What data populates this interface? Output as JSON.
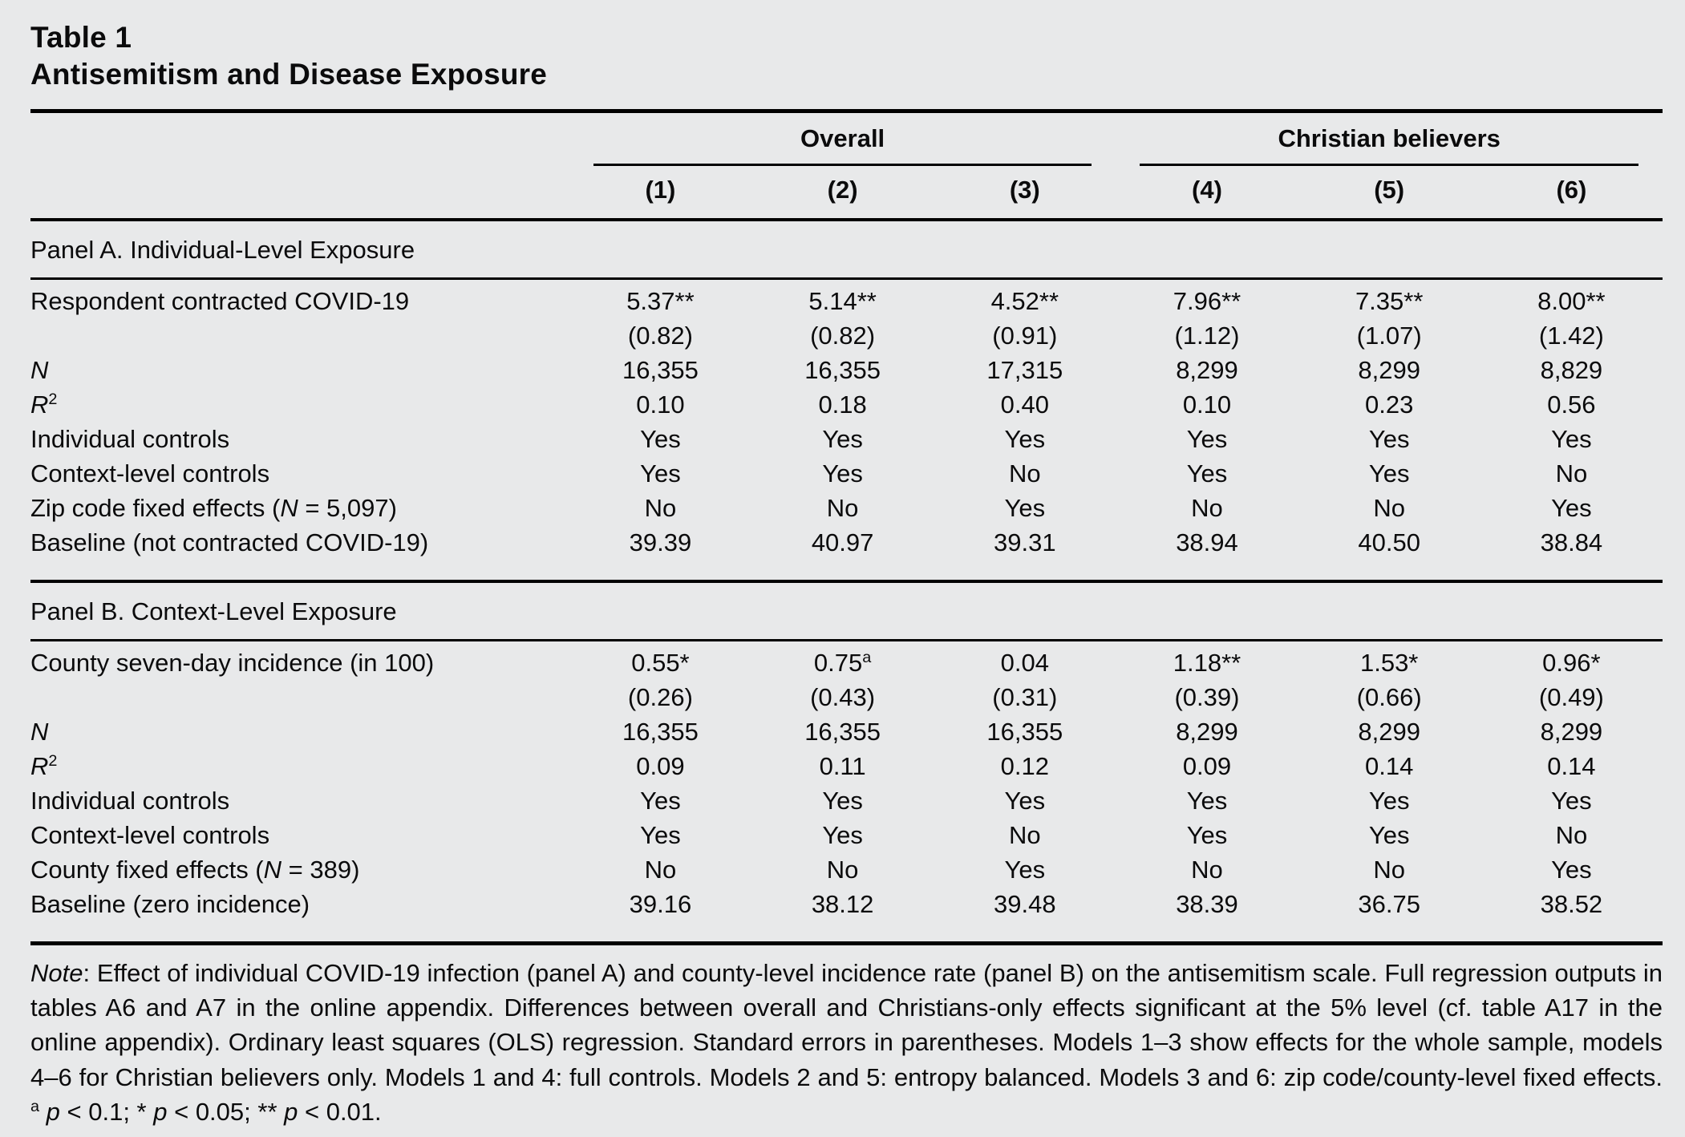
{
  "header": {
    "table_number": "Table 1",
    "table_title": "Antisemitism and Disease Exposure"
  },
  "table": {
    "group_headers": [
      {
        "label": "Overall",
        "span": 3
      },
      {
        "label": "Christian believers",
        "span": 3
      }
    ],
    "column_headers": [
      "(1)",
      "(2)",
      "(3)",
      "(4)",
      "(5)",
      "(6)"
    ],
    "panels": [
      {
        "title": "Panel A. Individual-Level Exposure",
        "rows": [
          {
            "label": [
              {
                "text": "Respondent contracted COVID-19"
              }
            ],
            "values": [
              "5.37**",
              "5.14**",
              "4.52**",
              "7.96**",
              "7.35**",
              "8.00**"
            ]
          },
          {
            "label": [],
            "values": [
              "(0.82)",
              "(0.82)",
              "(0.91)",
              "(1.12)",
              "(1.07)",
              "(1.42)"
            ]
          },
          {
            "label": [
              {
                "text": "N",
                "italic": true
              }
            ],
            "values": [
              "16,355",
              "16,355",
              "17,315",
              "8,299",
              "8,299",
              "8,829"
            ]
          },
          {
            "label": [
              {
                "text": "R",
                "italic": true
              },
              {
                "text": "2",
                "sup": true
              }
            ],
            "values": [
              "0.10",
              "0.18",
              "0.40",
              "0.10",
              "0.23",
              "0.56"
            ]
          },
          {
            "label": [
              {
                "text": "Individual controls"
              }
            ],
            "values": [
              "Yes",
              "Yes",
              "Yes",
              "Yes",
              "Yes",
              "Yes"
            ]
          },
          {
            "label": [
              {
                "text": "Context-level controls"
              }
            ],
            "values": [
              "Yes",
              "Yes",
              "No",
              "Yes",
              "Yes",
              "No"
            ]
          },
          {
            "label": [
              {
                "text": "Zip code fixed effects ("
              },
              {
                "text": "N",
                "italic": true
              },
              {
                "text": " = 5,097)"
              }
            ],
            "values": [
              "No",
              "No",
              "Yes",
              "No",
              "No",
              "Yes"
            ]
          },
          {
            "label": [
              {
                "text": "Baseline (not contracted COVID-19)"
              }
            ],
            "values": [
              "39.39",
              "40.97",
              "39.31",
              "38.94",
              "40.50",
              "38.84"
            ]
          }
        ]
      },
      {
        "title": "Panel B. Context-Level Exposure",
        "rows": [
          {
            "label": [
              {
                "text": "County seven-day incidence (in 100)"
              }
            ],
            "values": [
              "0.55*",
              "0.75^a",
              "0.04",
              "1.18**",
              "1.53*",
              "0.96*"
            ]
          },
          {
            "label": [],
            "values": [
              "(0.26)",
              "(0.43)",
              "(0.31)",
              "(0.39)",
              "(0.66)",
              "(0.49)"
            ]
          },
          {
            "label": [
              {
                "text": "N",
                "italic": true
              }
            ],
            "values": [
              "16,355",
              "16,355",
              "16,355",
              "8,299",
              "8,299",
              "8,299"
            ]
          },
          {
            "label": [
              {
                "text": "R",
                "italic": true
              },
              {
                "text": "2",
                "sup": true
              }
            ],
            "values": [
              "0.09",
              "0.11",
              "0.12",
              "0.09",
              "0.14",
              "0.14"
            ]
          },
          {
            "label": [
              {
                "text": "Individual controls"
              }
            ],
            "values": [
              "Yes",
              "Yes",
              "Yes",
              "Yes",
              "Yes",
              "Yes"
            ]
          },
          {
            "label": [
              {
                "text": "Context-level controls"
              }
            ],
            "values": [
              "Yes",
              "Yes",
              "No",
              "Yes",
              "Yes",
              "No"
            ]
          },
          {
            "label": [
              {
                "text": "County fixed effects ("
              },
              {
                "text": "N",
                "italic": true
              },
              {
                "text": " = 389)"
              }
            ],
            "values": [
              "No",
              "No",
              "Yes",
              "No",
              "No",
              "Yes"
            ]
          },
          {
            "label": [
              {
                "text": "Baseline (zero incidence)"
              }
            ],
            "values": [
              "39.16",
              "38.12",
              "39.48",
              "38.39",
              "36.75",
              "38.52"
            ]
          }
        ]
      }
    ]
  },
  "note": {
    "parts": [
      {
        "text": "Note",
        "italic": true
      },
      {
        "text": ": Effect of individual COVID-19 infection (panel A) and county-level incidence rate (panel B) on the antisemitism scale. Full regression outputs in tables A6 and A7 in the online appendix. Differences between overall and Christians-only effects significant at the 5% level (cf. table A17 in the online appendix). Ordinary least squares (OLS) regression. Standard errors in parentheses. Models 1–3 show effects for the whole sample, models 4–6 for Christian believers only. Models 1 and 4: full controls. Models 2 and 5: entropy balanced. Models 3 and 6: zip code/county-level fixed effects. "
      },
      {
        "text": "a",
        "sup": true
      },
      {
        "text": " "
      },
      {
        "text": "p",
        "italic": true
      },
      {
        "text": " < 0.1; * "
      },
      {
        "text": "p",
        "italic": true
      },
      {
        "text": " < 0.05; ** "
      },
      {
        "text": "p",
        "italic": true
      },
      {
        "text": " < 0.01."
      }
    ]
  },
  "colors": {
    "page_bg": "#e8e9ea",
    "text": "#0b0b0c",
    "rule": "#000000"
  }
}
